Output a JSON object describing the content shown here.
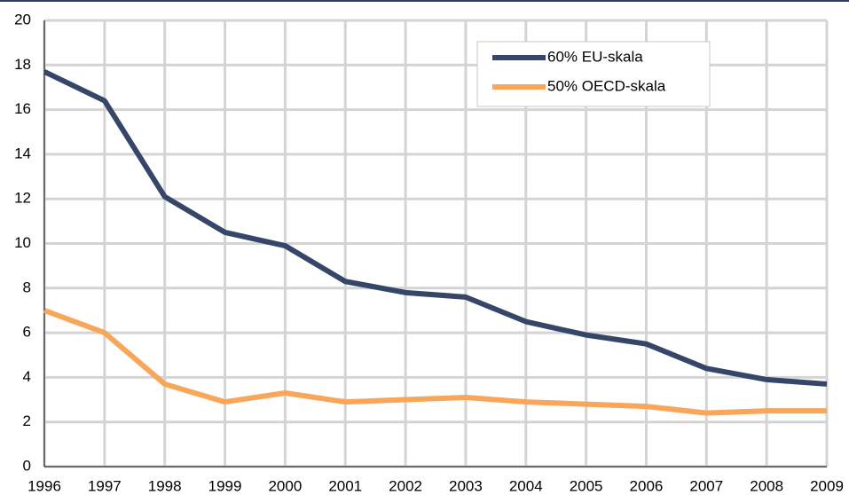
{
  "chart_data": {
    "type": "line",
    "x": [
      1996,
      1997,
      1998,
      1999,
      2000,
      2001,
      2002,
      2003,
      2004,
      2005,
      2006,
      2007,
      2008,
      2009
    ],
    "series": [
      {
        "name": "60% EU-skala",
        "color": "#354668",
        "values": [
          17.7,
          16.4,
          12.1,
          10.5,
          9.9,
          8.3,
          7.8,
          7.6,
          6.5,
          5.9,
          5.5,
          4.4,
          3.9,
          3.7
        ]
      },
      {
        "name": "50% OECD-skala",
        "color": "#f8a65a",
        "values": [
          7.0,
          6.0,
          3.7,
          2.9,
          3.3,
          2.9,
          3.0,
          3.1,
          2.9,
          2.8,
          2.7,
          2.4,
          2.5,
          2.5
        ]
      }
    ],
    "xlim": [
      1996,
      2009
    ],
    "xticks": [
      1996,
      1997,
      1998,
      1999,
      2000,
      2001,
      2002,
      2003,
      2004,
      2005,
      2006,
      2007,
      2008,
      2009
    ],
    "ylim": [
      0,
      20
    ],
    "yticks": [
      0,
      2,
      4,
      6,
      8,
      10,
      12,
      14,
      16,
      18,
      20
    ],
    "grid": true,
    "legend": "top-right"
  }
}
